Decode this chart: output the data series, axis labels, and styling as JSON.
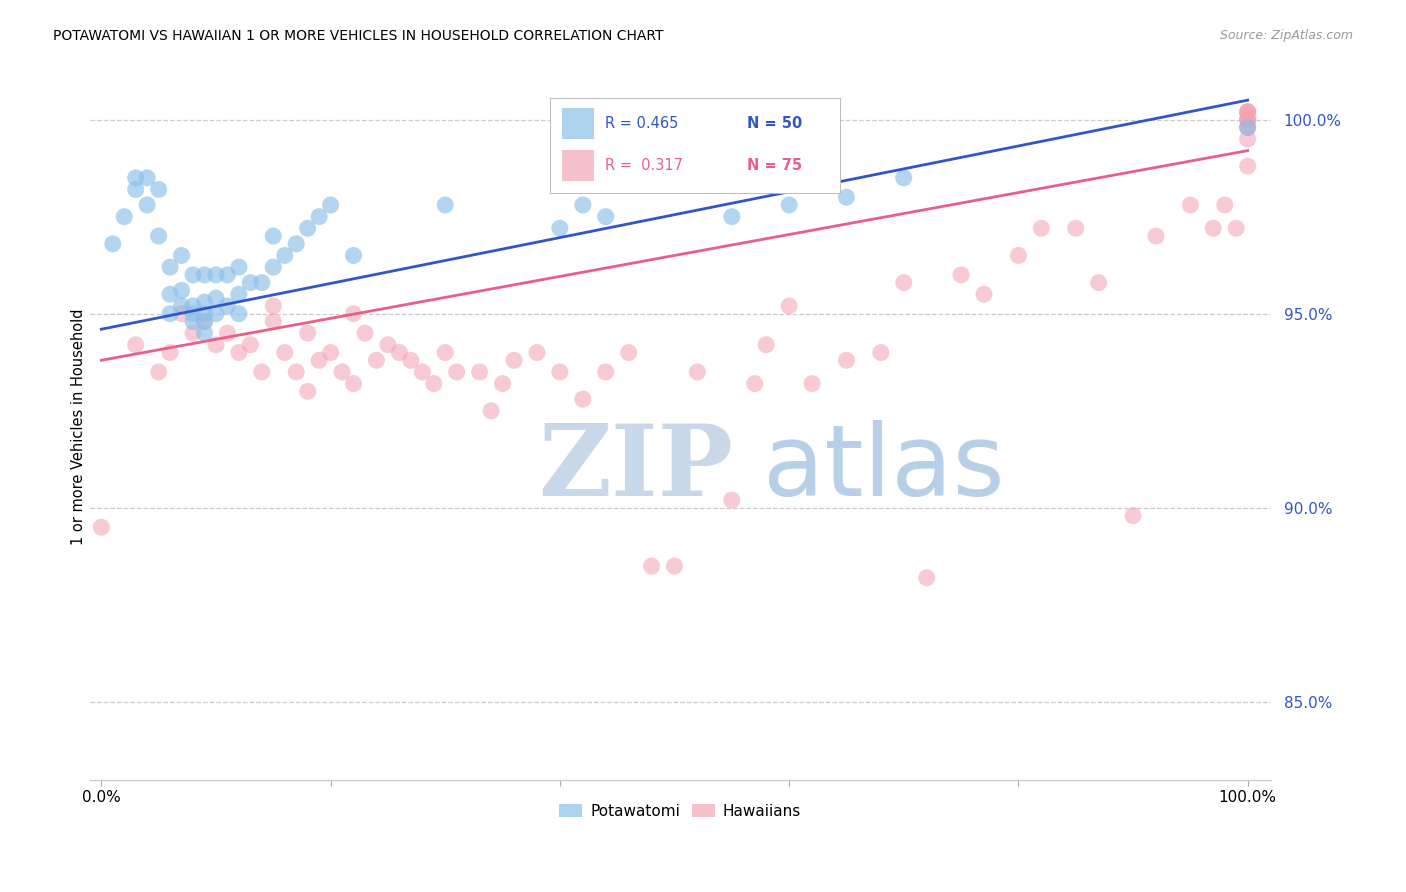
{
  "title": "POTAWATOMI VS HAWAIIAN 1 OR MORE VEHICLES IN HOUSEHOLD CORRELATION CHART",
  "source": "Source: ZipAtlas.com",
  "ylabel": "1 or more Vehicles in Household",
  "xlim": [
    -1,
    102
  ],
  "ylim": [
    83.0,
    101.2
  ],
  "yticks": [
    85.0,
    90.0,
    95.0,
    100.0
  ],
  "ytick_labels": [
    "85.0%",
    "90.0%",
    "95.0%",
    "100.0%"
  ],
  "xtick_positions": [
    0,
    20,
    40,
    60,
    80,
    100
  ],
  "xtick_labels": [
    "0.0%",
    "",
    "",
    "",
    "",
    "100.0%"
  ],
  "blue_color": "#8bbfe8",
  "pink_color": "#f4a0b0",
  "line_blue": "#3355cc",
  "line_pink": "#e8608a",
  "legend_blue_r": "R = 0.465",
  "legend_blue_n": "N = 50",
  "legend_pink_r": "R =  0.317",
  "legend_pink_n": "N = 75",
  "watermark_zip": "ZIP",
  "watermark_atlas": "atlas",
  "watermark_color_zip": "#c8d8e8",
  "watermark_color_atlas": "#b8cfe8",
  "blue_line_x0": 0,
  "blue_line_y0": 94.6,
  "blue_line_x1": 100,
  "blue_line_y1": 100.5,
  "pink_line_x0": 0,
  "pink_line_y0": 93.8,
  "pink_line_x1": 100,
  "pink_line_y1": 99.2,
  "pot_x": [
    1,
    2,
    3,
    3,
    4,
    4,
    5,
    5,
    6,
    6,
    6,
    7,
    7,
    7,
    8,
    8,
    8,
    8,
    9,
    9,
    9,
    9,
    9,
    10,
    10,
    10,
    11,
    11,
    12,
    12,
    12,
    13,
    14,
    15,
    15,
    16,
    17,
    18,
    19,
    20,
    22,
    30,
    40,
    42,
    44,
    55,
    60,
    65,
    70,
    100
  ],
  "pot_y": [
    96.8,
    97.5,
    98.2,
    98.5,
    97.8,
    98.5,
    97.0,
    98.2,
    95.0,
    95.5,
    96.2,
    95.2,
    95.6,
    96.5,
    94.8,
    95.0,
    95.2,
    96.0,
    94.5,
    94.8,
    95.0,
    95.3,
    96.0,
    95.0,
    95.4,
    96.0,
    95.2,
    96.0,
    95.0,
    95.5,
    96.2,
    95.8,
    95.8,
    96.2,
    97.0,
    96.5,
    96.8,
    97.2,
    97.5,
    97.8,
    96.5,
    97.8,
    97.2,
    97.8,
    97.5,
    97.5,
    97.8,
    98.0,
    98.5,
    99.8
  ],
  "haw_x": [
    0,
    3,
    5,
    6,
    7,
    8,
    9,
    10,
    11,
    12,
    13,
    14,
    15,
    15,
    16,
    17,
    18,
    18,
    19,
    20,
    21,
    22,
    22,
    23,
    24,
    25,
    26,
    27,
    28,
    29,
    30,
    31,
    33,
    34,
    35,
    36,
    38,
    40,
    42,
    44,
    46,
    48,
    50,
    52,
    55,
    57,
    58,
    60,
    62,
    65,
    68,
    70,
    72,
    75,
    77,
    80,
    82,
    85,
    87,
    90,
    92,
    95,
    97,
    98,
    99,
    100,
    100,
    100,
    100,
    100,
    100,
    100,
    100,
    100,
    100
  ],
  "haw_y": [
    89.5,
    94.2,
    93.5,
    94.0,
    95.0,
    94.5,
    94.8,
    94.2,
    94.5,
    94.0,
    94.2,
    93.5,
    94.8,
    95.2,
    94.0,
    93.5,
    93.0,
    94.5,
    93.8,
    94.0,
    93.5,
    93.2,
    95.0,
    94.5,
    93.8,
    94.2,
    94.0,
    93.8,
    93.5,
    93.2,
    94.0,
    93.5,
    93.5,
    92.5,
    93.2,
    93.8,
    94.0,
    93.5,
    92.8,
    93.5,
    94.0,
    88.5,
    88.5,
    93.5,
    90.2,
    93.2,
    94.2,
    95.2,
    93.2,
    93.8,
    94.0,
    95.8,
    88.2,
    96.0,
    95.5,
    96.5,
    97.2,
    97.2,
    95.8,
    89.8,
    97.0,
    97.8,
    97.2,
    97.8,
    97.2,
    98.8,
    100.0,
    99.8,
    100.2,
    99.5,
    100.2,
    99.8,
    100.0,
    100.2,
    100.0
  ]
}
